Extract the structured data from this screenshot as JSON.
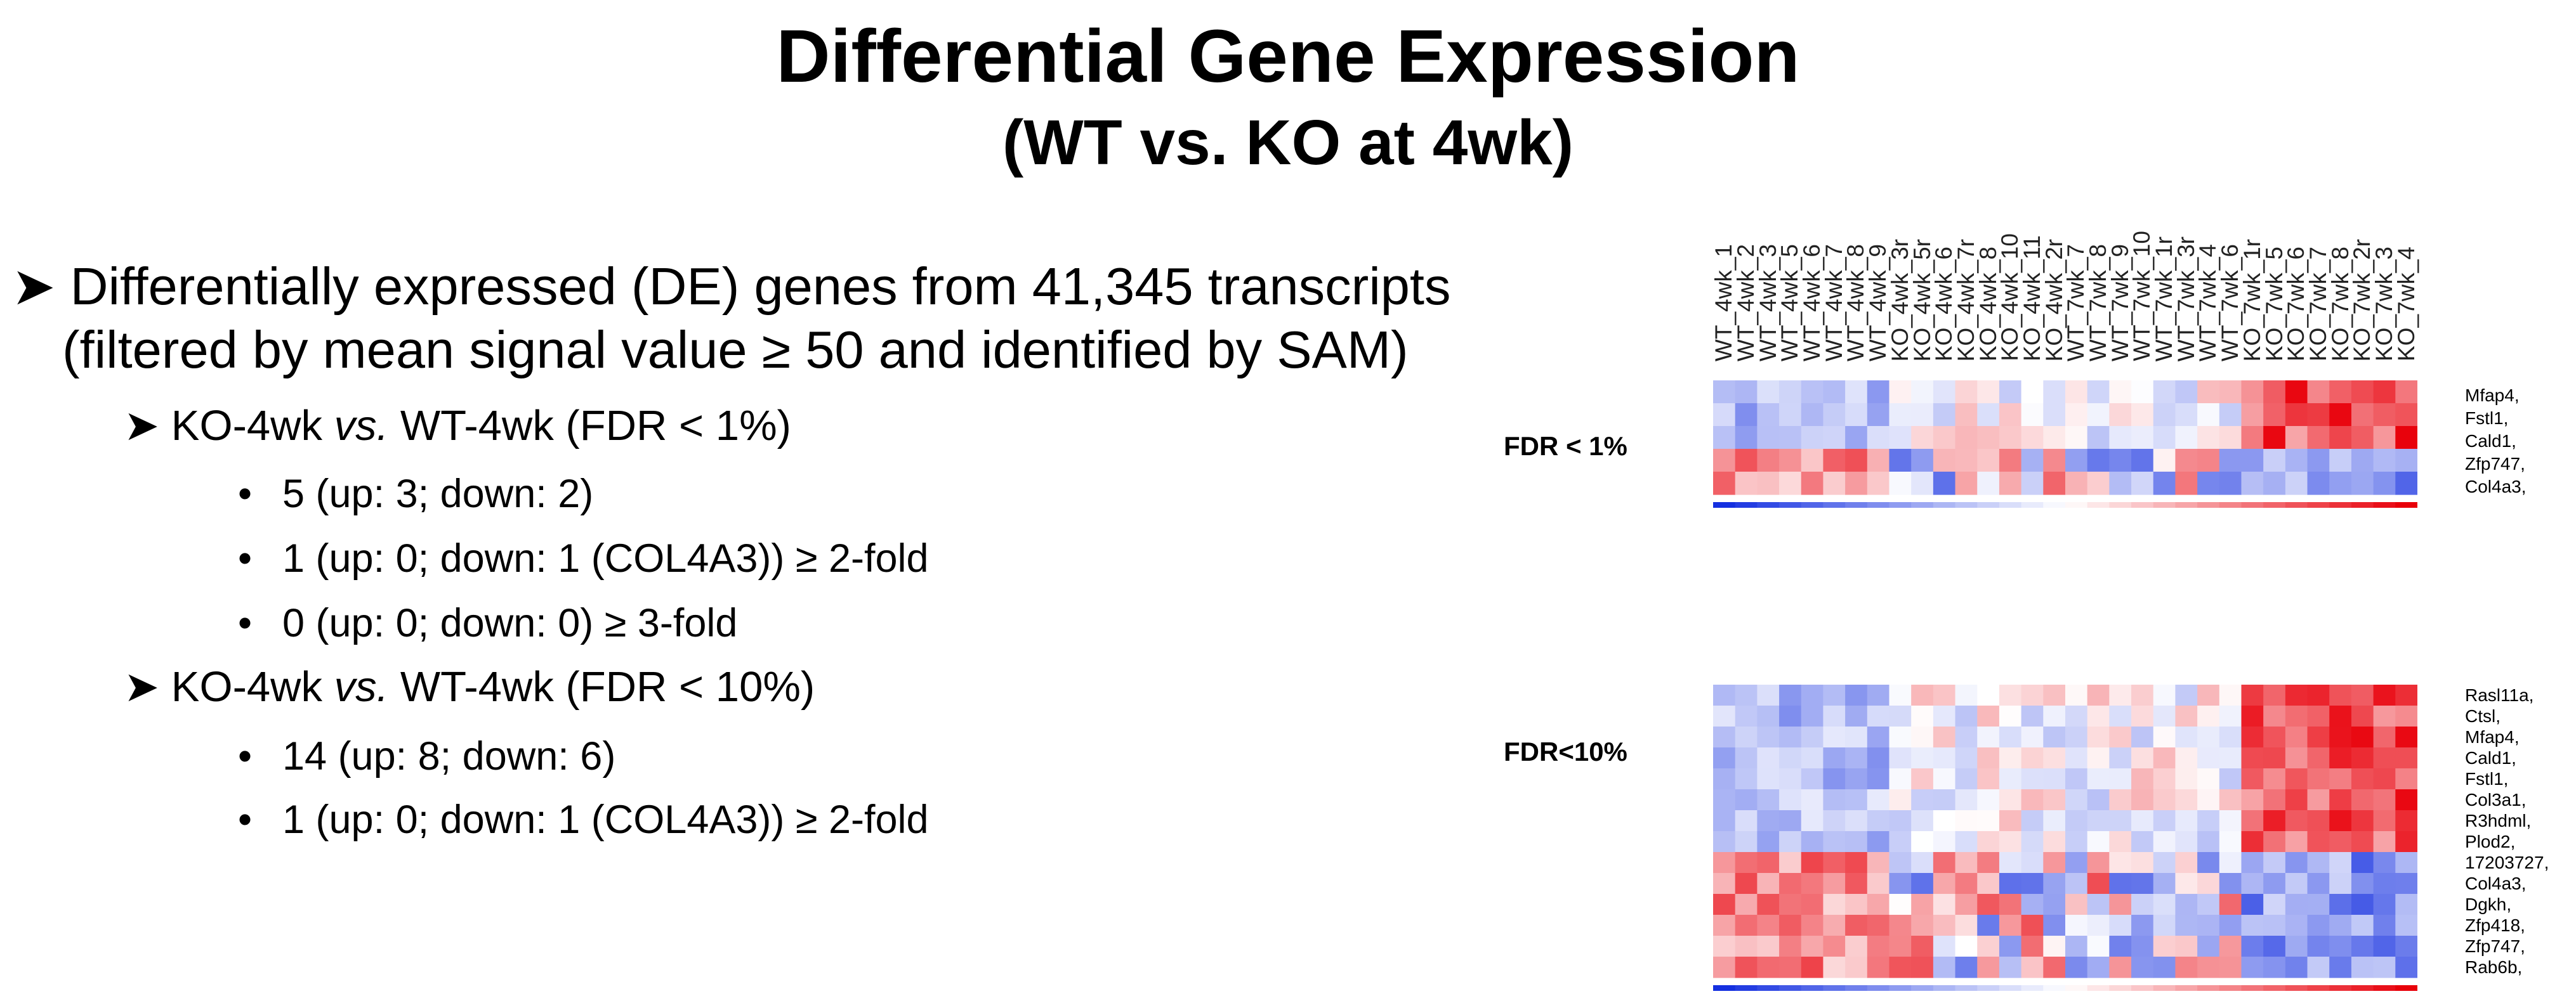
{
  "title": "Differential Gene Expression",
  "subtitle": "(WT vs. KO at 4wk)",
  "bullets": {
    "main_line1": "Differentially expressed (DE) genes from 41,345 transcripts",
    "main_line2": "(filtered by mean signal value ≥ 50 and identified by SAM)",
    "sec1": {
      "prefix": "KO-4wk ",
      "vs": "vs.",
      "suffix": " WT-4wk (FDR < 1%)",
      "items": [
        "5 (up: 3; down: 2)",
        "1 (up: 0; down: 1 (COL4A3)) ≥ 2-fold",
        "0 (up: 0; down: 0) ≥ 3-fold"
      ]
    },
    "sec2": {
      "prefix": "KO-4wk ",
      "vs": "vs.",
      "suffix": " WT-4wk (FDR < 10%)",
      "items": [
        "14 (up: 8; down: 6)",
        "1 (up: 0; down: 1 (COL4A3)) ≥ 2-fold"
      ]
    }
  },
  "heatmaps": {
    "fdr1": {
      "label": "FDR < 1%",
      "genes": [
        "Mfap4,",
        "Fstl1,",
        "Cald1,",
        "Zfp747,",
        "Col4a3,"
      ]
    },
    "fdr10": {
      "label": "FDR<10%",
      "genes": [
        "Rasl11a,",
        "Ctsl,",
        "Mfap4,",
        "Cald1,",
        "Fstl1,",
        "Col3a1,",
        "R3hdml,",
        "Plod2,",
        "17203727,",
        "Col4a3,",
        "Dgkh,",
        "Zfp418,",
        "Zfp747,",
        "Rab6b,"
      ]
    },
    "samples": [
      "WT_4wk_1",
      "WT_4wk_2",
      "WT_4wk_3",
      "WT_4wk_5",
      "WT_4wk_6",
      "WT_4wk_7",
      "WT_4wk_8",
      "WT_4wk_9",
      "KO_4wk_3r",
      "KO_4wk_5r",
      "KO_4wk_6",
      "KO_4wk_7r",
      "KO_4wk_8",
      "KO_4wk_10",
      "KO_4wk_11",
      "KO_4wk_2r",
      "WT_7wk_7",
      "WT_7wk_8",
      "WT_7wk_9",
      "WT_7wk_10",
      "WT_7wk_1r",
      "WT_7wk_3r",
      "WT_7wk_4",
      "WT_7wk_6",
      "KO_7wk_1r",
      "KO_7wk_5",
      "KO_7wk_6",
      "KO_7wk_7",
      "KO_7wk_8",
      "KO_7wk_2r",
      "KO_7wk_3",
      "KO_7wk_4"
    ],
    "colors": {
      "high": "#e8000a",
      "low": "#1530e0",
      "mid": "#ffffff"
    }
  }
}
